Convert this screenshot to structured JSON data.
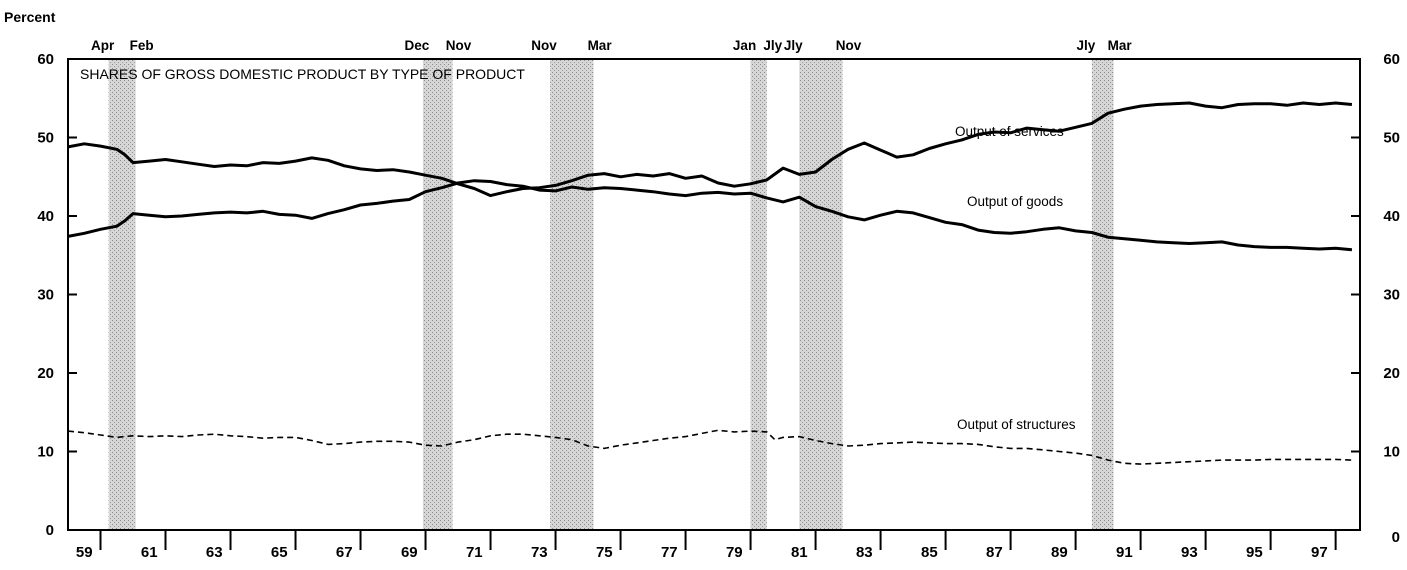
{
  "chart_data": {
    "type": "line",
    "title": "SHARES OF GROSS DOMESTIC PRODUCT BY TYPE OF PRODUCT",
    "ylabel": "Percent",
    "ylim": [
      0,
      60
    ],
    "yticks": [
      0,
      10,
      20,
      30,
      40,
      50,
      60
    ],
    "xlim": [
      1959,
      1998.75
    ],
    "x_tick_labels": [
      "59",
      "61",
      "63",
      "65",
      "67",
      "69",
      "71",
      "73",
      "75",
      "77",
      "79",
      "81",
      "83",
      "85",
      "87",
      "89",
      "91",
      "93",
      "95",
      "97"
    ],
    "grid": false,
    "recessions": [
      {
        "start": 1960.25,
        "end": 1961.08,
        "start_label": "Apr",
        "end_label": "Feb"
      },
      {
        "start": 1969.92,
        "end": 1970.83,
        "start_label": "Dec",
        "end_label": "Nov"
      },
      {
        "start": 1973.83,
        "end": 1975.17,
        "start_label": "Nov",
        "end_label": "Mar"
      },
      {
        "start": 1980.0,
        "end": 1980.5,
        "start_label": "Jan",
        "end_label": "Jly"
      },
      {
        "start": 1981.5,
        "end": 1982.83,
        "start_label": "Jly",
        "end_label": "Nov"
      },
      {
        "start": 1990.5,
        "end": 1991.17,
        "start_label": "Jly",
        "end_label": "Mar"
      }
    ],
    "series": [
      {
        "name": "Output of services",
        "style": "solid",
        "points": [
          [
            1959.0,
            48.8
          ],
          [
            1959.5,
            49.2
          ],
          [
            1960.0,
            48.9
          ],
          [
            1960.5,
            48.5
          ],
          [
            1960.75,
            47.8
          ],
          [
            1961.0,
            46.8
          ],
          [
            1961.5,
            47.0
          ],
          [
            1962.0,
            47.2
          ],
          [
            1962.5,
            46.9
          ],
          [
            1963.0,
            46.6
          ],
          [
            1963.5,
            46.3
          ],
          [
            1964.0,
            46.5
          ],
          [
            1964.5,
            46.4
          ],
          [
            1965.0,
            46.8
          ],
          [
            1965.5,
            46.7
          ],
          [
            1966.0,
            47.0
          ],
          [
            1966.5,
            47.4
          ],
          [
            1967.0,
            47.1
          ],
          [
            1967.5,
            46.4
          ],
          [
            1968.0,
            46.0
          ],
          [
            1968.5,
            45.8
          ],
          [
            1969.0,
            45.9
          ],
          [
            1969.5,
            45.6
          ],
          [
            1970.0,
            45.2
          ],
          [
            1970.5,
            44.8
          ],
          [
            1971.0,
            44.1
          ],
          [
            1971.5,
            43.5
          ],
          [
            1972.0,
            42.6
          ],
          [
            1972.5,
            43.1
          ],
          [
            1973.0,
            43.5
          ],
          [
            1973.5,
            43.6
          ],
          [
            1974.0,
            43.9
          ],
          [
            1974.5,
            44.5
          ],
          [
            1975.0,
            45.2
          ],
          [
            1975.5,
            45.4
          ],
          [
            1976.0,
            45.0
          ],
          [
            1976.5,
            45.3
          ],
          [
            1977.0,
            45.1
          ],
          [
            1977.5,
            45.4
          ],
          [
            1978.0,
            44.8
          ],
          [
            1978.5,
            45.1
          ],
          [
            1979.0,
            44.2
          ],
          [
            1979.5,
            43.8
          ],
          [
            1980.0,
            44.1
          ],
          [
            1980.5,
            44.6
          ],
          [
            1981.0,
            46.1
          ],
          [
            1981.5,
            45.3
          ],
          [
            1982.0,
            45.6
          ],
          [
            1982.5,
            47.2
          ],
          [
            1983.0,
            48.5
          ],
          [
            1983.5,
            49.3
          ],
          [
            1984.0,
            48.4
          ],
          [
            1984.5,
            47.5
          ],
          [
            1985.0,
            47.8
          ],
          [
            1985.5,
            48.6
          ],
          [
            1986.0,
            49.2
          ],
          [
            1986.5,
            49.7
          ],
          [
            1987.0,
            50.4
          ],
          [
            1987.5,
            50.7
          ],
          [
            1988.0,
            50.6
          ],
          [
            1988.5,
            51.2
          ],
          [
            1989.0,
            51.0
          ],
          [
            1989.5,
            50.8
          ],
          [
            1990.0,
            51.3
          ],
          [
            1990.5,
            51.8
          ],
          [
            1991.0,
            53.1
          ],
          [
            1991.5,
            53.6
          ],
          [
            1992.0,
            54.0
          ],
          [
            1992.5,
            54.2
          ],
          [
            1993.0,
            54.3
          ],
          [
            1993.5,
            54.4
          ],
          [
            1994.0,
            54.0
          ],
          [
            1994.5,
            53.8
          ],
          [
            1995.0,
            54.2
          ],
          [
            1995.5,
            54.3
          ],
          [
            1996.0,
            54.3
          ],
          [
            1996.5,
            54.1
          ],
          [
            1997.0,
            54.4
          ],
          [
            1997.5,
            54.2
          ],
          [
            1998.0,
            54.4
          ],
          [
            1998.5,
            54.2
          ]
        ]
      },
      {
        "name": "Output of goods",
        "style": "solid",
        "points": [
          [
            1959.0,
            37.4
          ],
          [
            1959.5,
            37.8
          ],
          [
            1960.0,
            38.3
          ],
          [
            1960.5,
            38.7
          ],
          [
            1960.75,
            39.4
          ],
          [
            1961.0,
            40.3
          ],
          [
            1961.5,
            40.1
          ],
          [
            1962.0,
            39.9
          ],
          [
            1962.5,
            40.0
          ],
          [
            1963.0,
            40.2
          ],
          [
            1963.5,
            40.4
          ],
          [
            1964.0,
            40.5
          ],
          [
            1964.5,
            40.4
          ],
          [
            1965.0,
            40.6
          ],
          [
            1965.5,
            40.2
          ],
          [
            1966.0,
            40.1
          ],
          [
            1966.5,
            39.7
          ],
          [
            1967.0,
            40.3
          ],
          [
            1967.5,
            40.8
          ],
          [
            1968.0,
            41.4
          ],
          [
            1968.5,
            41.6
          ],
          [
            1969.0,
            41.9
          ],
          [
            1969.5,
            42.1
          ],
          [
            1970.0,
            43.1
          ],
          [
            1970.5,
            43.6
          ],
          [
            1971.0,
            44.2
          ],
          [
            1971.5,
            44.5
          ],
          [
            1972.0,
            44.4
          ],
          [
            1972.5,
            44.0
          ],
          [
            1973.0,
            43.8
          ],
          [
            1973.5,
            43.3
          ],
          [
            1974.0,
            43.2
          ],
          [
            1974.5,
            43.7
          ],
          [
            1975.0,
            43.4
          ],
          [
            1975.5,
            43.6
          ],
          [
            1976.0,
            43.5
          ],
          [
            1976.5,
            43.3
          ],
          [
            1977.0,
            43.1
          ],
          [
            1977.5,
            42.8
          ],
          [
            1978.0,
            42.6
          ],
          [
            1978.5,
            42.9
          ],
          [
            1979.0,
            43.0
          ],
          [
            1979.5,
            42.8
          ],
          [
            1980.0,
            42.9
          ],
          [
            1980.5,
            42.3
          ],
          [
            1981.0,
            41.8
          ],
          [
            1981.5,
            42.4
          ],
          [
            1982.0,
            41.2
          ],
          [
            1982.5,
            40.6
          ],
          [
            1983.0,
            39.9
          ],
          [
            1983.5,
            39.5
          ],
          [
            1984.0,
            40.1
          ],
          [
            1984.5,
            40.6
          ],
          [
            1985.0,
            40.4
          ],
          [
            1985.5,
            39.8
          ],
          [
            1986.0,
            39.2
          ],
          [
            1986.5,
            38.9
          ],
          [
            1987.0,
            38.2
          ],
          [
            1987.5,
            37.9
          ],
          [
            1988.0,
            37.8
          ],
          [
            1988.5,
            38.0
          ],
          [
            1989.0,
            38.3
          ],
          [
            1989.5,
            38.5
          ],
          [
            1990.0,
            38.1
          ],
          [
            1990.5,
            37.9
          ],
          [
            1991.0,
            37.3
          ],
          [
            1991.5,
            37.1
          ],
          [
            1992.0,
            36.9
          ],
          [
            1992.5,
            36.7
          ],
          [
            1993.0,
            36.6
          ],
          [
            1993.5,
            36.5
          ],
          [
            1994.0,
            36.6
          ],
          [
            1994.5,
            36.7
          ],
          [
            1995.0,
            36.3
          ],
          [
            1995.5,
            36.1
          ],
          [
            1996.0,
            36.0
          ],
          [
            1996.5,
            36.0
          ],
          [
            1997.0,
            35.9
          ],
          [
            1997.5,
            35.8
          ],
          [
            1998.0,
            35.9
          ],
          [
            1998.5,
            35.7
          ]
        ]
      },
      {
        "name": "Output of structures",
        "style": "dashed",
        "points": [
          [
            1959.0,
            12.6
          ],
          [
            1959.5,
            12.4
          ],
          [
            1960.0,
            12.1
          ],
          [
            1960.5,
            11.8
          ],
          [
            1961.0,
            12.0
          ],
          [
            1961.5,
            11.9
          ],
          [
            1962.0,
            12.0
          ],
          [
            1962.5,
            11.9
          ],
          [
            1963.0,
            12.1
          ],
          [
            1963.5,
            12.2
          ],
          [
            1964.0,
            12.0
          ],
          [
            1964.5,
            11.9
          ],
          [
            1965.0,
            11.7
          ],
          [
            1965.5,
            11.8
          ],
          [
            1966.0,
            11.8
          ],
          [
            1966.5,
            11.4
          ],
          [
            1967.0,
            10.9
          ],
          [
            1967.5,
            11.0
          ],
          [
            1968.0,
            11.2
          ],
          [
            1968.5,
            11.3
          ],
          [
            1969.0,
            11.3
          ],
          [
            1969.5,
            11.2
          ],
          [
            1970.0,
            10.8
          ],
          [
            1970.5,
            10.7
          ],
          [
            1971.0,
            11.2
          ],
          [
            1971.5,
            11.5
          ],
          [
            1972.0,
            12.0
          ],
          [
            1972.5,
            12.2
          ],
          [
            1973.0,
            12.2
          ],
          [
            1973.5,
            12.0
          ],
          [
            1974.0,
            11.8
          ],
          [
            1974.5,
            11.5
          ],
          [
            1975.0,
            10.7
          ],
          [
            1975.5,
            10.4
          ],
          [
            1976.0,
            10.8
          ],
          [
            1976.5,
            11.1
          ],
          [
            1977.0,
            11.4
          ],
          [
            1977.5,
            11.7
          ],
          [
            1978.0,
            11.9
          ],
          [
            1978.5,
            12.3
          ],
          [
            1979.0,
            12.7
          ],
          [
            1979.5,
            12.5
          ],
          [
            1980.0,
            12.6
          ],
          [
            1980.5,
            12.5
          ],
          [
            1980.75,
            11.5
          ],
          [
            1981.0,
            11.8
          ],
          [
            1981.5,
            11.9
          ],
          [
            1982.0,
            11.4
          ],
          [
            1982.5,
            11.0
          ],
          [
            1983.0,
            10.7
          ],
          [
            1983.5,
            10.8
          ],
          [
            1984.0,
            11.0
          ],
          [
            1984.5,
            11.1
          ],
          [
            1985.0,
            11.2
          ],
          [
            1985.5,
            11.1
          ],
          [
            1986.0,
            11.0
          ],
          [
            1986.5,
            11.0
          ],
          [
            1987.0,
            10.9
          ],
          [
            1987.5,
            10.6
          ],
          [
            1988.0,
            10.4
          ],
          [
            1988.5,
            10.4
          ],
          [
            1989.0,
            10.2
          ],
          [
            1989.5,
            10.0
          ],
          [
            1990.0,
            9.8
          ],
          [
            1990.5,
            9.5
          ],
          [
            1991.0,
            8.9
          ],
          [
            1991.5,
            8.5
          ],
          [
            1992.0,
            8.4
          ],
          [
            1992.5,
            8.5
          ],
          [
            1993.0,
            8.6
          ],
          [
            1993.5,
            8.7
          ],
          [
            1994.0,
            8.8
          ],
          [
            1994.5,
            8.9
          ],
          [
            1995.0,
            8.9
          ],
          [
            1995.5,
            8.9
          ],
          [
            1996.0,
            9.0
          ],
          [
            1996.5,
            9.0
          ],
          [
            1997.0,
            9.0
          ],
          [
            1997.5,
            9.0
          ],
          [
            1998.0,
            9.0
          ],
          [
            1998.5,
            8.9
          ]
        ]
      }
    ]
  }
}
